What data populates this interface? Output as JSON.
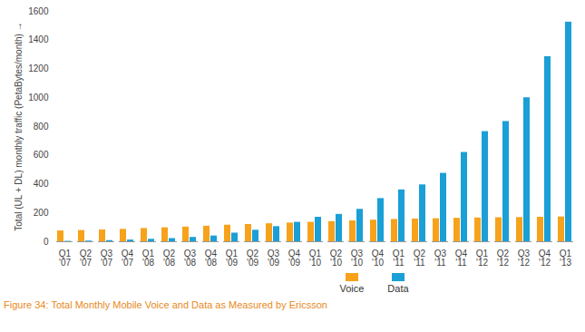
{
  "chart_data": {
    "type": "bar",
    "title": "Figure 34: Total Monthly Mobile Voice and Data as Measured by Ericsson",
    "y_label": "Total (UL + DL) monthly traffic (PetaBytes/month)",
    "categories": [
      "Q1 '07",
      "Q2 '07",
      "Q3 '07",
      "Q4 '07",
      "Q1 '08",
      "Q2 '08",
      "Q3 '08",
      "Q4 '08",
      "Q1 '09",
      "Q2 '09",
      "Q3 '09",
      "Q4 '09",
      "Q1 '10",
      "Q2 '10",
      "Q3 '10",
      "Q4 '10",
      "Q1 '11",
      "Q2 '11",
      "Q3 '11",
      "Q4 '11",
      "Q1 '12",
      "Q2 '12",
      "Q3 '12",
      "Q4 '12",
      "Q1 '13"
    ],
    "series": [
      {
        "name": "Voice",
        "color": "#f7a21b",
        "values": [
          75,
          78,
          82,
          86,
          92,
          97,
          102,
          108,
          115,
          120,
          125,
          130,
          135,
          140,
          145,
          150,
          155,
          158,
          160,
          163,
          165,
          167,
          168,
          170,
          172
        ]
      },
      {
        "name": "Data",
        "color": "#1a9fd6",
        "values": [
          3,
          5,
          8,
          12,
          17,
          22,
          30,
          40,
          60,
          80,
          105,
          135,
          170,
          190,
          225,
          300,
          360,
          395,
          475,
          620,
          765,
          835,
          1000,
          1285,
          1525
        ]
      }
    ],
    "ylim": [
      0,
      1600
    ],
    "yticks": [
      0,
      200,
      400,
      600,
      800,
      1000,
      1200,
      1400,
      1600
    ],
    "grid": false,
    "legend": "bottom"
  }
}
